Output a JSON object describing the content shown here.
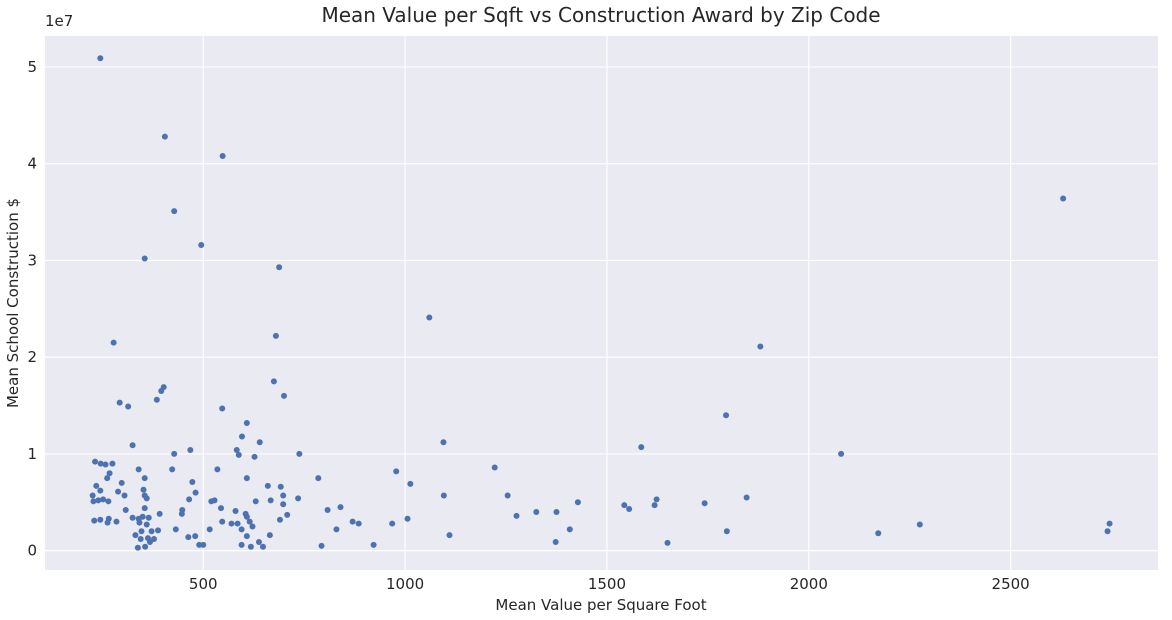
{
  "chart_data": {
    "type": "scatter",
    "title": "Mean Value per Sqft vs Construction Award by Zip Code",
    "xlabel": "Mean Value per Square Foot",
    "ylabel": "Mean School Construction $",
    "y_offset_label": "1e7",
    "xlim": [
      108,
      2865
    ],
    "ylim": [
      -0.2,
      5.32
    ],
    "y_unit_multiplier": 10000000,
    "x_ticks": [
      500,
      1000,
      1500,
      2000,
      2500
    ],
    "y_ticks": [
      0,
      1,
      2,
      3,
      4,
      5
    ],
    "grid": true,
    "marker_color": "#4c72b0",
    "points": [
      [
        245,
        5.09
      ],
      [
        405,
        4.28
      ],
      [
        548,
        4.08
      ],
      [
        428,
        3.51
      ],
      [
        495,
        3.16
      ],
      [
        355,
        3.02
      ],
      [
        688,
        2.93
      ],
      [
        278,
        2.15
      ],
      [
        680,
        2.22
      ],
      [
        1060,
        2.41
      ],
      [
        1880,
        2.11
      ],
      [
        2630,
        3.64
      ],
      [
        675,
        1.75
      ],
      [
        700,
        1.6
      ],
      [
        402,
        1.69
      ],
      [
        396,
        1.65
      ],
      [
        385,
        1.56
      ],
      [
        293,
        1.53
      ],
      [
        314,
        1.49
      ],
      [
        547,
        1.47
      ],
      [
        608,
        1.32
      ],
      [
        1795,
        1.4
      ],
      [
        596,
        1.18
      ],
      [
        640,
        1.12
      ],
      [
        1095,
        1.12
      ],
      [
        1585,
        1.07
      ],
      [
        325,
        1.09
      ],
      [
        468,
        1.04
      ],
      [
        583,
        1.04
      ],
      [
        428,
        1.0
      ],
      [
        738,
        1.0
      ],
      [
        2080,
        1.0
      ],
      [
        588,
        0.99
      ],
      [
        627,
        0.97
      ],
      [
        232,
        0.92
      ],
      [
        258,
        0.89
      ],
      [
        275,
        0.9
      ],
      [
        246,
        0.9
      ],
      [
        1222,
        0.86
      ],
      [
        535,
        0.84
      ],
      [
        340,
        0.84
      ],
      [
        423,
        0.84
      ],
      [
        268,
        0.8
      ],
      [
        978,
        0.82
      ],
      [
        262,
        0.75
      ],
      [
        355,
        0.75
      ],
      [
        608,
        0.75
      ],
      [
        785,
        0.75
      ],
      [
        473,
        0.71
      ],
      [
        1013,
        0.69
      ],
      [
        235,
        0.67
      ],
      [
        298,
        0.7
      ],
      [
        660,
        0.67
      ],
      [
        692,
        0.66
      ],
      [
        245,
        0.62
      ],
      [
        352,
        0.63
      ],
      [
        289,
        0.61
      ],
      [
        481,
        0.6
      ],
      [
        1254,
        0.57
      ],
      [
        1096,
        0.57
      ],
      [
        355,
        0.57
      ],
      [
        305,
        0.57
      ],
      [
        698,
        0.57
      ],
      [
        226,
        0.57
      ],
      [
        360,
        0.54
      ],
      [
        465,
        0.53
      ],
      [
        528,
        0.52
      ],
      [
        667,
        0.52
      ],
      [
        735,
        0.54
      ],
      [
        1846,
        0.55
      ],
      [
        1623,
        0.53
      ],
      [
        252,
        0.53
      ],
      [
        240,
        0.52
      ],
      [
        228,
        0.51
      ],
      [
        265,
        0.51
      ],
      [
        520,
        0.51
      ],
      [
        630,
        0.51
      ],
      [
        1428,
        0.5
      ],
      [
        1742,
        0.49
      ],
      [
        1543,
        0.47
      ],
      [
        1618,
        0.47
      ],
      [
        698,
        0.48
      ],
      [
        840,
        0.45
      ],
      [
        544,
        0.44
      ],
      [
        1555,
        0.43
      ],
      [
        355,
        0.44
      ],
      [
        308,
        0.42
      ],
      [
        448,
        0.42
      ],
      [
        808,
        0.42
      ],
      [
        580,
        0.41
      ],
      [
        1325,
        0.4
      ],
      [
        1375,
        0.4
      ],
      [
        605,
        0.38
      ],
      [
        392,
        0.38
      ],
      [
        447,
        0.38
      ],
      [
        708,
        0.37
      ],
      [
        1276,
        0.36
      ],
      [
        350,
        0.35
      ],
      [
        608,
        0.35
      ],
      [
        365,
        0.34
      ],
      [
        325,
        0.34
      ],
      [
        340,
        0.33
      ],
      [
        266,
        0.33
      ],
      [
        230,
        0.31
      ],
      [
        245,
        0.32
      ],
      [
        285,
        0.3
      ],
      [
        547,
        0.3
      ],
      [
        570,
        0.28
      ],
      [
        585,
        0.28
      ],
      [
        615,
        0.3
      ],
      [
        690,
        0.32
      ],
      [
        870,
        0.3
      ],
      [
        885,
        0.28
      ],
      [
        2275,
        0.27
      ],
      [
        1408,
        0.22
      ],
      [
        342,
        0.29
      ],
      [
        263,
        0.29
      ],
      [
        360,
        0.27
      ],
      [
        968,
        0.28
      ],
      [
        1006,
        0.33
      ],
      [
        2745,
        0.28
      ],
      [
        2740,
        0.2
      ],
      [
        1797,
        0.2
      ],
      [
        2172,
        0.18
      ],
      [
        1110,
        0.16
      ],
      [
        830,
        0.22
      ],
      [
        432,
        0.22
      ],
      [
        516,
        0.22
      ],
      [
        595,
        0.22
      ],
      [
        622,
        0.25
      ],
      [
        372,
        0.2
      ],
      [
        388,
        0.21
      ],
      [
        347,
        0.2
      ],
      [
        332,
        0.16
      ],
      [
        463,
        0.14
      ],
      [
        480,
        0.15
      ],
      [
        363,
        0.13
      ],
      [
        378,
        0.12
      ],
      [
        345,
        0.12
      ],
      [
        368,
        0.09
      ],
      [
        638,
        0.09
      ],
      [
        608,
        0.15
      ],
      [
        665,
        0.16
      ],
      [
        1373,
        0.09
      ],
      [
        1650,
        0.08
      ],
      [
        922,
        0.06
      ],
      [
        490,
        0.06
      ],
      [
        500,
        0.06
      ],
      [
        595,
        0.06
      ],
      [
        618,
        0.04
      ],
      [
        648,
        0.04
      ],
      [
        793,
        0.05
      ],
      [
        338,
        0.03
      ],
      [
        356,
        0.04
      ]
    ]
  }
}
